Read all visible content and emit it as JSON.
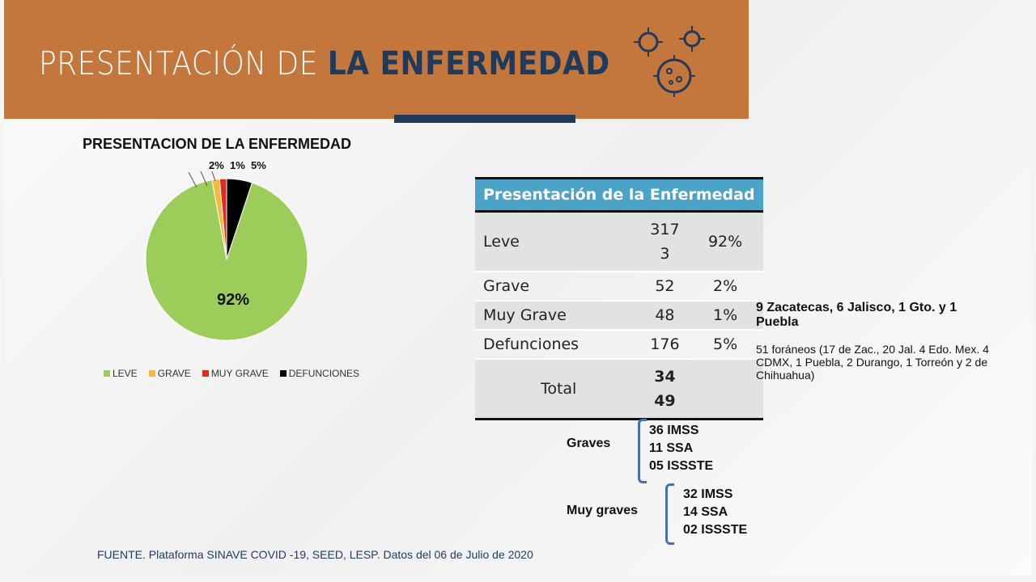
{
  "header": {
    "title_light": "PRESENTACIÓN DE ",
    "title_bold": "LA ENFERMEDAD"
  },
  "chart_data": {
    "type": "pie",
    "title": "PRESENTACION DE LA ENFERMEDAD",
    "categories": [
      "LEVE",
      "GRAVE",
      "MUY GRAVE",
      "DEFUNCIONES"
    ],
    "values": [
      3173,
      52,
      48,
      176
    ],
    "labels": [
      "92%",
      "2%",
      "1%",
      "5%"
    ],
    "colors": [
      "#9ccc5a",
      "#f5b942",
      "#e02b20",
      "#000000"
    ],
    "legend_position": "bottom"
  },
  "table": {
    "header": "Presentación de la Enfermedad",
    "rows": [
      {
        "label": "Leve",
        "count": "3173",
        "pct": "92%"
      },
      {
        "label": "Grave",
        "count": "52",
        "pct": "2%"
      },
      {
        "label": "Muy Grave",
        "count": "48",
        "pct": "1%"
      },
      {
        "label": "Defunciones",
        "count": "176",
        "pct": "5%"
      }
    ],
    "total_label": "Total",
    "total": "3449"
  },
  "notes": {
    "deaths_origin": "9 Zacatecas, 6 Jalisco, 1 Gto. y 1 Puebla",
    "foreign": "51 foráneos (17 de Zac., 20 Jal. 4 Edo. Mex. 4 CDMX, 1 Puebla, 2 Durango, 1 Torreón y 2 de Chihuahua)",
    "graves_label": "Graves",
    "graves": [
      "36 IMSS",
      "11 SSA",
      "05 ISSSTE"
    ],
    "muy_graves_label": "Muy graves",
    "muy_graves": [
      "32 IMSS",
      "14 SSA",
      "02 ISSSTE"
    ]
  },
  "source": "FUENTE. Plataforma SINAVE COVID -19, SEED, LESP. Datos del 06 de Julio de 2020"
}
